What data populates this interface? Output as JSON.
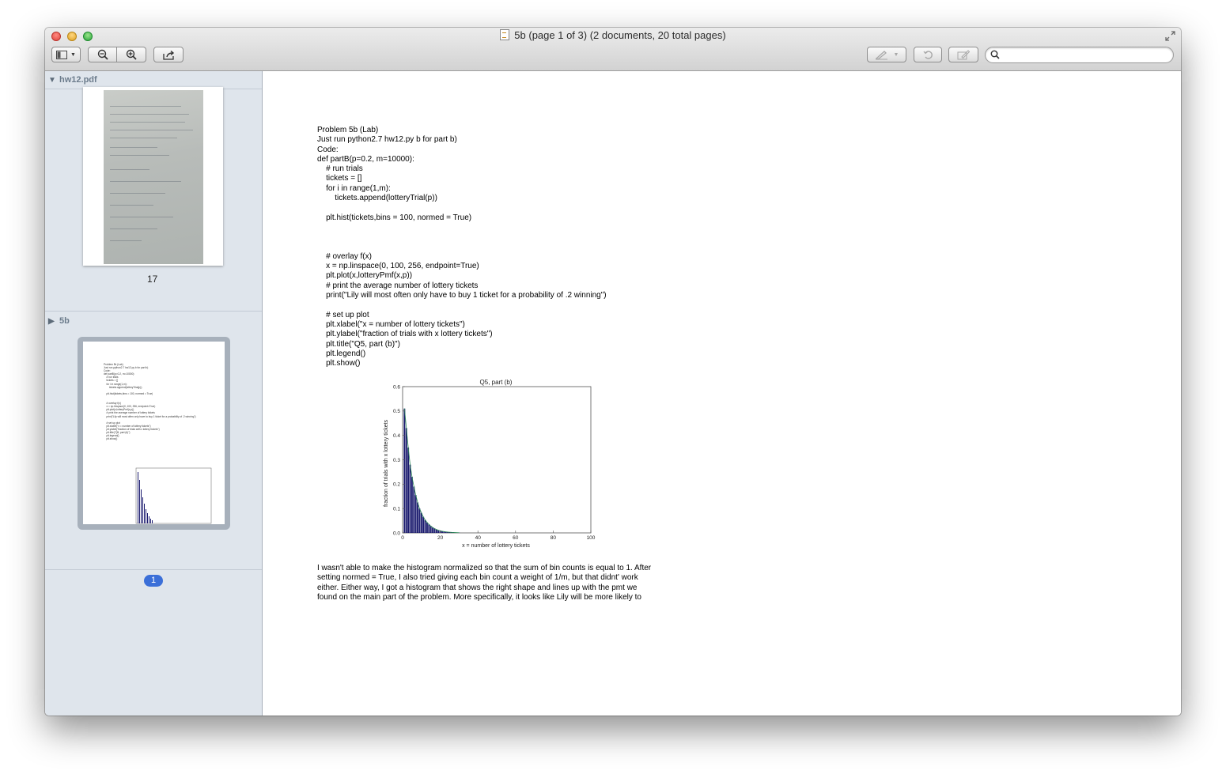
{
  "window": {
    "title": "5b (page 1 of 3) (2 documents, 20 total pages)"
  },
  "search": {
    "value": "",
    "placeholder": ""
  },
  "sidebar": {
    "groups": [
      {
        "name": "hw12.pdf",
        "expanded": true,
        "page_label": "17"
      },
      {
        "name": "5b",
        "expanded": false,
        "page_label": "1"
      }
    ]
  },
  "document": {
    "code_lines": [
      "Problem 5b (Lab)",
      "Just run python2.7 hw12.py b for part b)",
      "Code:",
      "def partB(p=0.2, m=10000):",
      "    # run trials",
      "    tickets = []",
      "    for i in range(1,m):",
      "        tickets.append(lotteryTrial(p))",
      "",
      "    plt.hist(tickets,bins = 100, normed = True)",
      "",
      "",
      "",
      "    # overlay f(x)",
      "    x = np.linspace(0, 100, 256, endpoint=True)",
      "    plt.plot(x,lotteryPmf(x,p))",
      "    # print the average number of lottery tickets",
      "    print(\"Lily will most often only have to buy 1 ticket for a probability of .2 winning\")",
      "",
      "    # set up plot",
      "    plt.xlabel(\"x = number of lottery tickets\")",
      "    plt.ylabel(\"fraction of trials with x lottery tickets\")",
      "    plt.title(\"Q5, part (b)\")",
      "    plt.legend()",
      "    plt.show()"
    ],
    "paragraph_lines": [
      "I wasn't able to make the histogram normalized so that the sum of bin counts is equal to 1. After",
      "setting normed = True, I also tried giving each bin count a weight of 1/m, but that didnt' work",
      "either. Either way, I got a histogram that shows the right shape and lines up with the pmt we",
      "found on the main part of the problem. More specifically, it looks like Lily will be more likely to"
    ]
  },
  "chart_data": {
    "type": "bar",
    "title": "Q5, part (b)",
    "xlabel": "x = number of lottery tickets",
    "ylabel": "fraction of trials with x lottery tickets",
    "xlim": [
      0,
      100
    ],
    "ylim": [
      0,
      0.6
    ],
    "xticks": [
      "0",
      "20",
      "40",
      "60",
      "80",
      "100"
    ],
    "yticks": [
      "0.0",
      "0.1",
      "0.2",
      "0.3",
      "0.4",
      "0.5",
      "0.6"
    ],
    "x": [
      1,
      2,
      3,
      4,
      5,
      6,
      7,
      8,
      9,
      10,
      11,
      12,
      13,
      14,
      15,
      16,
      17,
      18,
      19,
      20,
      21,
      22,
      23,
      24,
      25,
      26,
      27,
      28,
      29,
      30
    ],
    "values": [
      0.51,
      0.43,
      0.35,
      0.28,
      0.23,
      0.19,
      0.155,
      0.125,
      0.1,
      0.082,
      0.066,
      0.053,
      0.043,
      0.035,
      0.028,
      0.022,
      0.018,
      0.014,
      0.011,
      0.009,
      0.007,
      0.0055,
      0.0045,
      0.0035,
      0.0028,
      0.0022,
      0.0018,
      0.0014,
      0.0011,
      0.0009
    ],
    "bar_color": "#1a1a6e",
    "line_color": "#2e8b57",
    "grid": false
  },
  "colors": {
    "sidebar_bg": "#dfe5ec",
    "selection_badge": "#3b6fd8"
  }
}
